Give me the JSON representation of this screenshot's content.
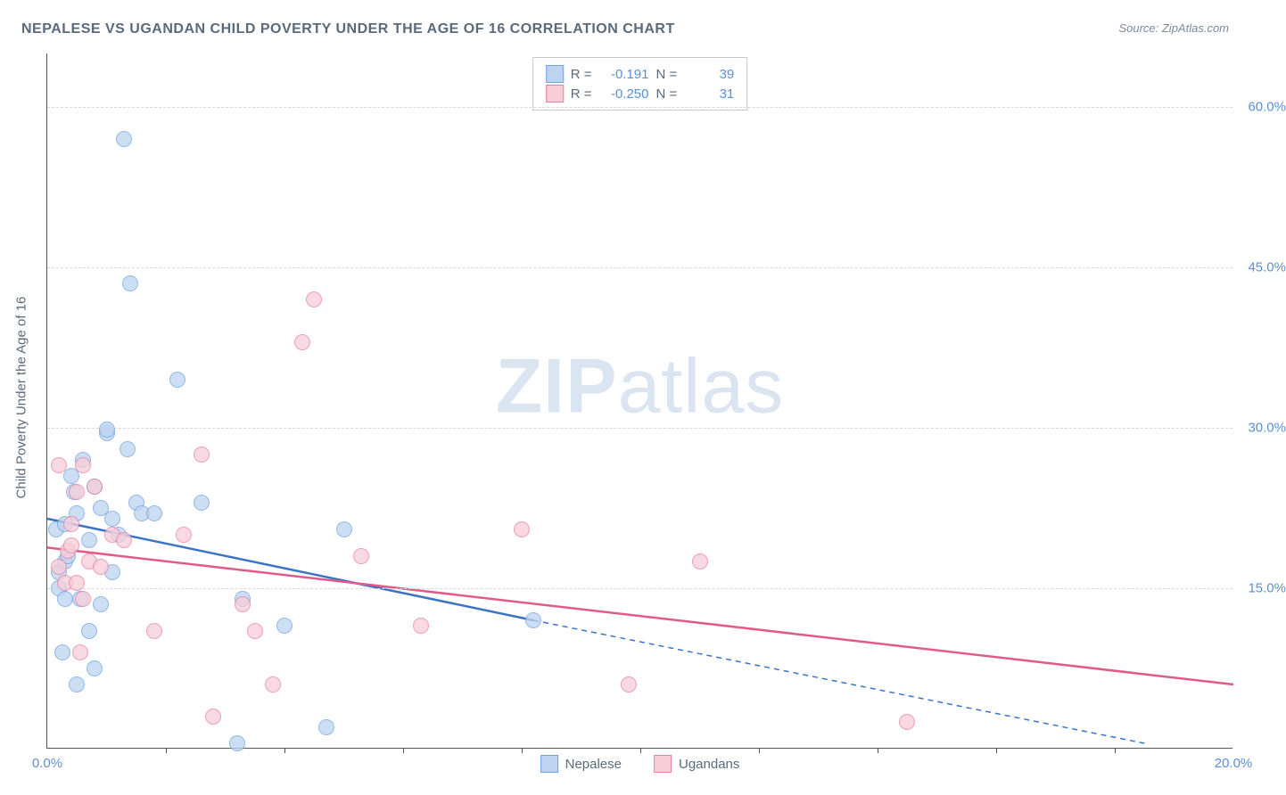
{
  "title": "NEPALESE VS UGANDAN CHILD POVERTY UNDER THE AGE OF 16 CORRELATION CHART",
  "source": "Source: ZipAtlas.com",
  "y_axis_label": "Child Poverty Under the Age of 16",
  "watermark_bold": "ZIP",
  "watermark_rest": "atlas",
  "chart": {
    "type": "scatter",
    "xlim": [
      0,
      20
    ],
    "ylim": [
      0,
      65
    ],
    "x_ticks_major": [
      0,
      20
    ],
    "x_ticks_minor": [
      2,
      4,
      6,
      8,
      10,
      12,
      14,
      16,
      18
    ],
    "y_ticks": [
      15,
      30,
      45,
      60
    ],
    "y_tick_labels": [
      "15.0%",
      "30.0%",
      "45.0%",
      "60.0%"
    ],
    "x_tick_labels": {
      "0": "0.0%",
      "20": "20.0%"
    },
    "grid_color": "#d8d8d8",
    "background_color": "#ffffff",
    "axis_color": "#555555",
    "marker_radius": 9,
    "series": [
      {
        "name": "Nepalese",
        "fill": "#bcd4ef",
        "stroke": "#6fa3dd",
        "line_color": "#3b74c4",
        "r_value": "-0.191",
        "n_value": "39",
        "regression": {
          "x1": 0,
          "y1": 21.5,
          "x2": 8.2,
          "y2": 12.0,
          "dash_to_x": 18.5,
          "dash_to_y": 0.5
        },
        "points": [
          [
            0.15,
            20.5
          ],
          [
            0.2,
            15.0
          ],
          [
            0.2,
            16.5
          ],
          [
            0.25,
            9.0
          ],
          [
            0.3,
            17.5
          ],
          [
            0.3,
            14.0
          ],
          [
            0.3,
            21.0
          ],
          [
            0.45,
            24.0
          ],
          [
            0.5,
            6.0
          ],
          [
            0.5,
            22.0
          ],
          [
            0.55,
            14.0
          ],
          [
            0.6,
            27.0
          ],
          [
            0.7,
            11.0
          ],
          [
            0.7,
            19.5
          ],
          [
            0.8,
            24.5
          ],
          [
            0.8,
            7.5
          ],
          [
            0.9,
            22.5
          ],
          [
            0.9,
            13.5
          ],
          [
            1.0,
            29.5
          ],
          [
            1.0,
            29.8
          ],
          [
            1.1,
            21.5
          ],
          [
            1.1,
            16.5
          ],
          [
            1.2,
            20.0
          ],
          [
            1.3,
            57.0
          ],
          [
            1.35,
            28.0
          ],
          [
            1.4,
            43.5
          ],
          [
            1.5,
            23.0
          ],
          [
            1.6,
            22.0
          ],
          [
            1.8,
            22.0
          ],
          [
            2.2,
            34.5
          ],
          [
            2.6,
            23.0
          ],
          [
            3.2,
            0.5
          ],
          [
            3.3,
            14.0
          ],
          [
            4.0,
            11.5
          ],
          [
            4.7,
            2.0
          ],
          [
            5.0,
            20.5
          ],
          [
            8.2,
            12.0
          ],
          [
            0.4,
            25.5
          ],
          [
            0.35,
            18.0
          ]
        ]
      },
      {
        "name": "Ugandans",
        "fill": "#f7cdd8",
        "stroke": "#e77fa2",
        "line_color": "#e05a8a",
        "r_value": "-0.250",
        "n_value": "31",
        "regression": {
          "x1": 0,
          "y1": 18.8,
          "x2": 20,
          "y2": 6.0
        },
        "points": [
          [
            0.2,
            17.0
          ],
          [
            0.2,
            26.5
          ],
          [
            0.3,
            15.5
          ],
          [
            0.35,
            18.5
          ],
          [
            0.4,
            19.0
          ],
          [
            0.4,
            21.0
          ],
          [
            0.5,
            24.0
          ],
          [
            0.5,
            15.5
          ],
          [
            0.55,
            9.0
          ],
          [
            0.6,
            26.5
          ],
          [
            0.7,
            17.5
          ],
          [
            0.8,
            24.5
          ],
          [
            0.9,
            17.0
          ],
          [
            1.1,
            20.0
          ],
          [
            1.3,
            19.5
          ],
          [
            1.8,
            11.0
          ],
          [
            2.3,
            20.0
          ],
          [
            2.6,
            27.5
          ],
          [
            2.8,
            3.0
          ],
          [
            3.3,
            13.5
          ],
          [
            3.5,
            11.0
          ],
          [
            3.8,
            6.0
          ],
          [
            4.3,
            38.0
          ],
          [
            4.5,
            42.0
          ],
          [
            5.3,
            18.0
          ],
          [
            6.3,
            11.5
          ],
          [
            8.0,
            20.5
          ],
          [
            9.8,
            6.0
          ],
          [
            11.0,
            17.5
          ],
          [
            14.5,
            2.5
          ],
          [
            0.6,
            14.0
          ]
        ]
      }
    ]
  },
  "legend_labels": {
    "r": "R =",
    "n": "N ="
  },
  "bottom_legend": [
    {
      "label": "Nepalese",
      "fill": "#bcd4ef",
      "stroke": "#6fa3dd"
    },
    {
      "label": "Ugandans",
      "fill": "#f7cdd8",
      "stroke": "#e77fa2"
    }
  ]
}
